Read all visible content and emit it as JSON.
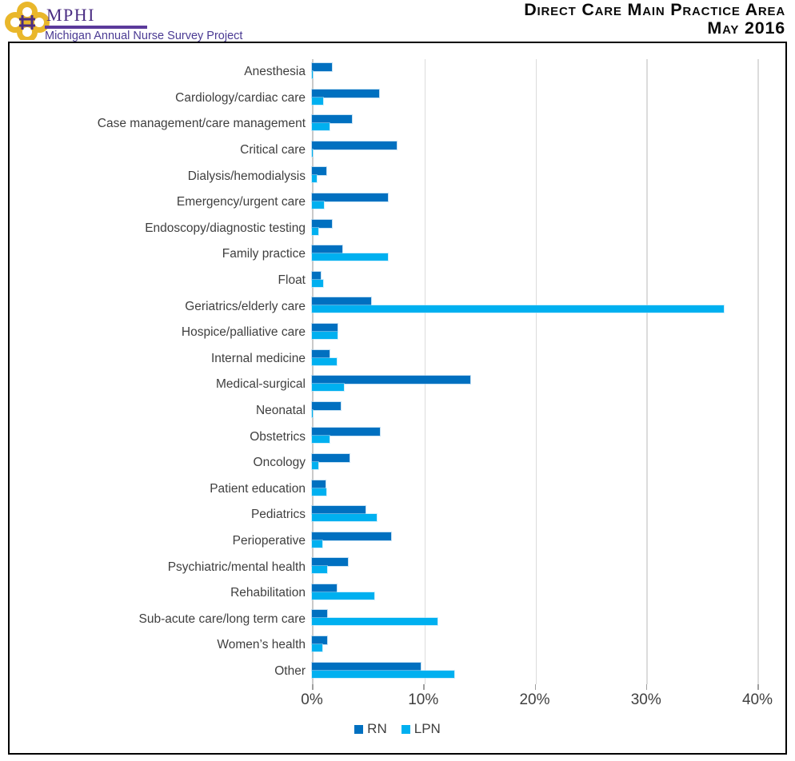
{
  "header": {
    "logo_acronym": "MPHI",
    "logo_subtitle": "Michigan Annual Nurse Survey Project",
    "title_line1": "Direct Care Main Practice Area",
    "title_line2": "May 2016"
  },
  "colors": {
    "rn": "#0070C0",
    "lpn": "#00B0F0",
    "logo_gold": "#E9B72B",
    "logo_purple": "#4B2E83",
    "subtitle_purple": "#4A3A93",
    "axis_text": "#3F3F3F"
  },
  "chart_data": {
    "type": "bar",
    "orientation": "horizontal",
    "title": "Direct Care Main Practice Area",
    "subtitle": "May 2016",
    "xlim": [
      0,
      40
    ],
    "x_ticks": [
      {
        "value": 0,
        "label": "0%"
      },
      {
        "value": 10,
        "label": "10%"
      },
      {
        "value": 20,
        "label": "20%"
      },
      {
        "value": 30,
        "label": "30%"
      },
      {
        "value": 40,
        "label": "40%"
      }
    ],
    "grid": true,
    "legend_position": "bottom",
    "categories": [
      "Anesthesia",
      "Cardiology/cardiac care",
      "Case management/care management",
      "Critical care",
      "Dialysis/hemodialysis",
      "Emergency/urgent care",
      "Endoscopy/diagnostic testing",
      "Family practice",
      "Float",
      "Geriatrics/elderly care",
      "Hospice/palliative care",
      "Internal medicine",
      "Medical-surgical",
      "Neonatal",
      "Obstetrics",
      "Oncology",
      "Patient education",
      "Pediatrics",
      "Perioperative",
      "Psychiatric/mental health",
      "Rehabilitation",
      "Sub-acute care/long term care",
      "Women’s health",
      "Other"
    ],
    "series": [
      {
        "name": "RN",
        "color": "#0070C0",
        "values": [
          1.8,
          6.0,
          3.6,
          7.6,
          1.3,
          6.8,
          1.8,
          2.7,
          0.8,
          5.3,
          2.3,
          1.6,
          14.2,
          2.6,
          6.1,
          3.4,
          1.2,
          4.8,
          7.1,
          3.2,
          2.2,
          1.4,
          1.4,
          9.8
        ]
      },
      {
        "name": "LPN",
        "color": "#00B0F0",
        "values": [
          0.1,
          1.0,
          1.6,
          0.1,
          0.4,
          1.1,
          0.6,
          6.8,
          1.0,
          37.0,
          2.3,
          2.2,
          2.9,
          0.1,
          1.6,
          0.6,
          1.3,
          5.8,
          0.9,
          1.4,
          5.6,
          11.3,
          0.9,
          12.8
        ]
      }
    ]
  }
}
